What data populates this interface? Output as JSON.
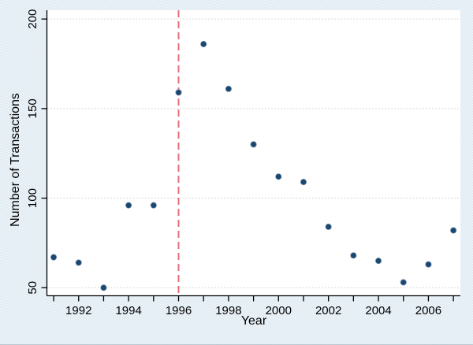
{
  "window": {
    "background_color": "#e3edf3",
    "plot_background_color": "#ffffff"
  },
  "chart_data": {
    "type": "scatter",
    "title": "",
    "xlabel": "Year",
    "ylabel": "Number of Transactions",
    "x": [
      1991,
      1992,
      1993,
      1994,
      1995,
      1996,
      1997,
      1998,
      1999,
      2000,
      2001,
      2002,
      2003,
      2004,
      2005,
      2006,
      2007
    ],
    "y": [
      67,
      64,
      50,
      96,
      96,
      159,
      186,
      161,
      130,
      112,
      109,
      84,
      68,
      65,
      53,
      63,
      82
    ],
    "marker": "circle",
    "marker_color": "#1a476f",
    "grid": "horizontal-dotted",
    "grid_color": "#b3b3b3",
    "legend_position": "none",
    "xlim": [
      1990.73,
      2007.28
    ],
    "ylim": [
      45.5,
      204.9
    ],
    "x_ticks": [
      1991,
      1992,
      1993,
      1994,
      1995,
      1996,
      1997,
      1998,
      1999,
      2000,
      2001,
      2002,
      2003,
      2004,
      2005,
      2006,
      2007
    ],
    "x_tick_labels": [
      {
        "value": 1992,
        "label": "1992"
      },
      {
        "value": 1994,
        "label": "1994"
      },
      {
        "value": 1996,
        "label": "1996"
      },
      {
        "value": 1998,
        "label": "1998"
      },
      {
        "value": 2000,
        "label": "2000"
      },
      {
        "value": 2002,
        "label": "2002"
      },
      {
        "value": 2004,
        "label": "2004"
      },
      {
        "value": 2006,
        "label": "2006"
      }
    ],
    "y_tick_labels": [
      {
        "value": 50,
        "label": "50"
      },
      {
        "value": 100,
        "label": "100"
      },
      {
        "value": 150,
        "label": "150"
      },
      {
        "value": 200,
        "label": "200"
      }
    ],
    "vline": {
      "x": 1996,
      "color": "#e4707c",
      "style": "dashed"
    }
  }
}
